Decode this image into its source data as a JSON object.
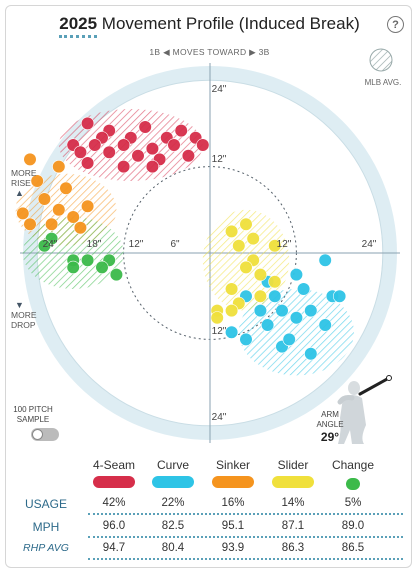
{
  "header": {
    "year": "2025",
    "title": "Movement Profile (Induced Break)",
    "help_label": "?"
  },
  "direction": {
    "left": "1B",
    "middle": "MOVES TOWARD",
    "right": "3B"
  },
  "legend": {
    "mlb_avg": "MLB AVG."
  },
  "side_labels": {
    "rise": [
      "MORE",
      "RISE"
    ],
    "drop": [
      "MORE",
      "DROP"
    ]
  },
  "sample": {
    "label": [
      "100 PITCH",
      "SAMPLE"
    ],
    "on": false
  },
  "arm_angle": {
    "label": [
      "ARM",
      "ANGLE"
    ],
    "value": "29°",
    "degrees": 29
  },
  "colors": {
    "4-Seam": "#d62e4a",
    "Curve": "#2ec4e6",
    "Sinker": "#f5941e",
    "Slider": "#f0e03c",
    "Change": "#3cba4a",
    "ring_outer": "#deedf3",
    "ring_inner": "#ffffff"
  },
  "chart_data": {
    "type": "scatter",
    "axis_ticks": {
      "x": [
        "24\"",
        "18\"",
        "12\"",
        "6\"",
        "12\"",
        "24\""
      ],
      "y": [
        "24\"",
        "12\"",
        "12\"",
        "24\""
      ]
    },
    "range_in": 24,
    "series": [
      {
        "name": "4-Seam",
        "points": [
          [
            -17,
            -18
          ],
          [
            -14,
            -17
          ],
          [
            -9,
            -17.5
          ],
          [
            -4,
            -17
          ],
          [
            -15,
            -16
          ],
          [
            -11,
            -16
          ],
          [
            -6,
            -16
          ],
          [
            -2,
            -16
          ],
          [
            -19,
            -15
          ],
          [
            -16,
            -15
          ],
          [
            -12,
            -15
          ],
          [
            -8,
            -14.5
          ],
          [
            -5,
            -15
          ],
          [
            -1,
            -15
          ],
          [
            -18,
            -14
          ],
          [
            -14,
            -14
          ],
          [
            -10,
            -13.5
          ],
          [
            -7,
            -13
          ],
          [
            -3,
            -13.5
          ],
          [
            -17,
            -12.5
          ],
          [
            -12,
            -12
          ],
          [
            -8,
            -12
          ]
        ],
        "mlb_avg": {
          "x": -11,
          "y": -15,
          "rx": 10,
          "ry": 5
        }
      },
      {
        "name": "Curve",
        "points": [
          [
            16,
            1
          ],
          [
            12,
            3
          ],
          [
            8,
            4
          ],
          [
            13,
            5
          ],
          [
            9,
            6
          ],
          [
            5,
            6
          ],
          [
            17,
            6
          ],
          [
            14,
            8
          ],
          [
            10,
            8
          ],
          [
            7,
            8
          ],
          [
            12,
            9
          ],
          [
            16,
            10
          ],
          [
            8,
            10
          ],
          [
            3,
            11
          ],
          [
            5,
            12
          ],
          [
            10,
            13
          ],
          [
            14,
            14
          ],
          [
            18,
            6
          ],
          [
            11,
            12
          ]
        ],
        "mlb_avg": {
          "x": 12,
          "y": 11,
          "rx": 8,
          "ry": 6
        }
      },
      {
        "name": "Sinker",
        "points": [
          [
            -25,
            -13
          ],
          [
            -21,
            -12
          ],
          [
            -24,
            -10
          ],
          [
            -20,
            -9
          ],
          [
            -23,
            -7.5
          ],
          [
            -17,
            -6.5
          ],
          [
            -21,
            -6
          ],
          [
            -26,
            -5.5
          ],
          [
            -19,
            -5
          ],
          [
            -25,
            -4
          ],
          [
            -22,
            -4
          ],
          [
            -18,
            -3.5
          ]
        ],
        "mlb_avg": {
          "x": -20,
          "y": -6,
          "rx": 7,
          "ry": 5
        }
      },
      {
        "name": "Slider",
        "points": [
          [
            5,
            -4
          ],
          [
            3,
            -3
          ],
          [
            6,
            -2
          ],
          [
            4,
            -1
          ],
          [
            9,
            -1
          ],
          [
            6,
            1
          ],
          [
            5,
            2
          ],
          [
            7,
            3
          ],
          [
            9,
            4
          ],
          [
            3,
            5
          ],
          [
            7,
            6
          ],
          [
            4,
            7
          ],
          [
            3,
            8
          ],
          [
            1,
            8
          ],
          [
            1,
            9
          ]
        ],
        "mlb_avg": {
          "x": 5,
          "y": 1,
          "rx": 6,
          "ry": 7
        }
      },
      {
        "name": "Change",
        "points": [
          [
            -22,
            -2
          ],
          [
            -23,
            -1
          ],
          [
            -19,
            1
          ],
          [
            -17,
            1
          ],
          [
            -19,
            2
          ],
          [
            -14,
            1
          ],
          [
            -15,
            2
          ],
          [
            -13,
            3
          ]
        ],
        "mlb_avg": {
          "x": -19,
          "y": 0,
          "rx": 7,
          "ry": 5
        }
      }
    ]
  },
  "table": {
    "columns": [
      "4-Seam",
      "Curve",
      "Sinker",
      "Slider",
      "Change"
    ],
    "rows": [
      {
        "label": "USAGE",
        "values": [
          "42%",
          "22%",
          "16%",
          "14%",
          "5%"
        ]
      },
      {
        "label": "MPH",
        "values": [
          "96.0",
          "82.5",
          "95.1",
          "87.1",
          "89.0"
        ]
      },
      {
        "label": "RHP AVG",
        "values": [
          "94.7",
          "80.4",
          "93.9",
          "86.3",
          "86.5"
        ]
      }
    ]
  }
}
